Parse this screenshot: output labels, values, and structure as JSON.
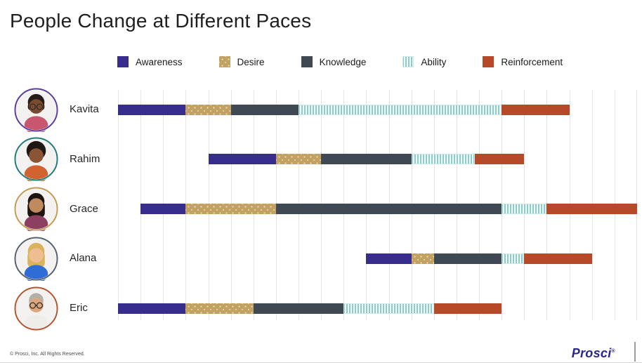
{
  "title": "People Change at Different Paces",
  "footer": {
    "copyright": "© Prosci, Inc. All Rights Reserved.",
    "logo_text": "Prosci",
    "logo_mark": "®"
  },
  "colors": {
    "awareness": "#362d8d",
    "desire": "#c2a161",
    "knowledge": "#3f4953",
    "ability_stripe": "#8ccbc7",
    "ability_bg": "#f2faf9",
    "reinforcement": "#b64a28",
    "gridline": "#e3e3e3",
    "logo_blue": "#29278c"
  },
  "chart_data": {
    "type": "bar",
    "variant": "horizontal-stacked-timeline",
    "title": "People Change at Different Paces",
    "legend_position": "top",
    "grid": "vertical-only",
    "axis": {
      "min": 0,
      "max": 23,
      "gridline_count": 24,
      "tick_labels": "none"
    },
    "phases": [
      {
        "id": "awareness",
        "label": "Awareness",
        "color": "#362d8d",
        "pattern": "solid"
      },
      {
        "id": "desire",
        "label": "Desire",
        "color": "#c2a161",
        "pattern": "dots"
      },
      {
        "id": "knowledge",
        "label": "Knowledge",
        "color": "#3f4953",
        "pattern": "solid"
      },
      {
        "id": "ability",
        "label": "Ability",
        "color": "#8ccbc7",
        "pattern": "vertical-stripes"
      },
      {
        "id": "reinforcement",
        "label": "Reinforcement",
        "color": "#b64a28",
        "pattern": "solid"
      }
    ],
    "people": [
      {
        "name": "Kavita",
        "ring_color": "#5a3d9c",
        "avatar": {
          "hair": "#241c18",
          "hair_style": "bob",
          "skin": "#7c4a2e",
          "shirt": "#c9566f",
          "glasses": true
        },
        "segments": {
          "awareness": [
            0,
            3
          ],
          "desire": [
            3,
            5
          ],
          "knowledge": [
            5,
            8
          ],
          "ability": [
            8,
            17
          ],
          "reinforcement": [
            17,
            20
          ]
        }
      },
      {
        "name": "Rahim",
        "ring_color": "#1f7a78",
        "avatar": {
          "hair": "#1e1713",
          "hair_style": "afro",
          "skin": "#8a5535",
          "shirt": "#d2622f",
          "glasses": false
        },
        "segments": {
          "awareness": [
            4,
            7
          ],
          "desire": [
            7,
            9
          ],
          "knowledge": [
            9,
            13
          ],
          "ability": [
            13,
            15.8
          ],
          "reinforcement": [
            15.8,
            18
          ]
        }
      },
      {
        "name": "Grace",
        "ring_color": "#c39a52",
        "avatar": {
          "hair": "#1c1410",
          "hair_style": "long",
          "skin": "#c08a5f",
          "shirt": "#8c3f62",
          "glasses": false
        },
        "segments": {
          "awareness": [
            1,
            3
          ],
          "desire": [
            3,
            7
          ],
          "knowledge": [
            7,
            17
          ],
          "ability": [
            17,
            19
          ],
          "reinforcement": [
            19,
            23
          ]
        }
      },
      {
        "name": "Alana",
        "ring_color": "#55616c",
        "avatar": {
          "hair": "#d9b35c",
          "hair_style": "long",
          "skin": "#eebd92",
          "shirt": "#2e6cd6",
          "glasses": false
        },
        "segments": {
          "awareness": [
            11,
            13
          ],
          "desire": [
            13,
            14
          ],
          "knowledge": [
            14,
            17
          ],
          "ability": [
            17,
            18
          ],
          "reinforcement": [
            18,
            21
          ]
        }
      },
      {
        "name": "Eric",
        "ring_color": "#b5532d",
        "avatar": {
          "hair": "#b3b0aa",
          "hair_style": "short",
          "skin": "#dba77f",
          "shirt": "#efede9",
          "glasses": true
        },
        "segments": {
          "awareness": [
            0,
            3
          ],
          "desire": [
            3,
            6
          ],
          "knowledge": [
            6,
            10
          ],
          "ability": [
            10,
            14
          ],
          "reinforcement": [
            14,
            17
          ]
        }
      }
    ]
  }
}
